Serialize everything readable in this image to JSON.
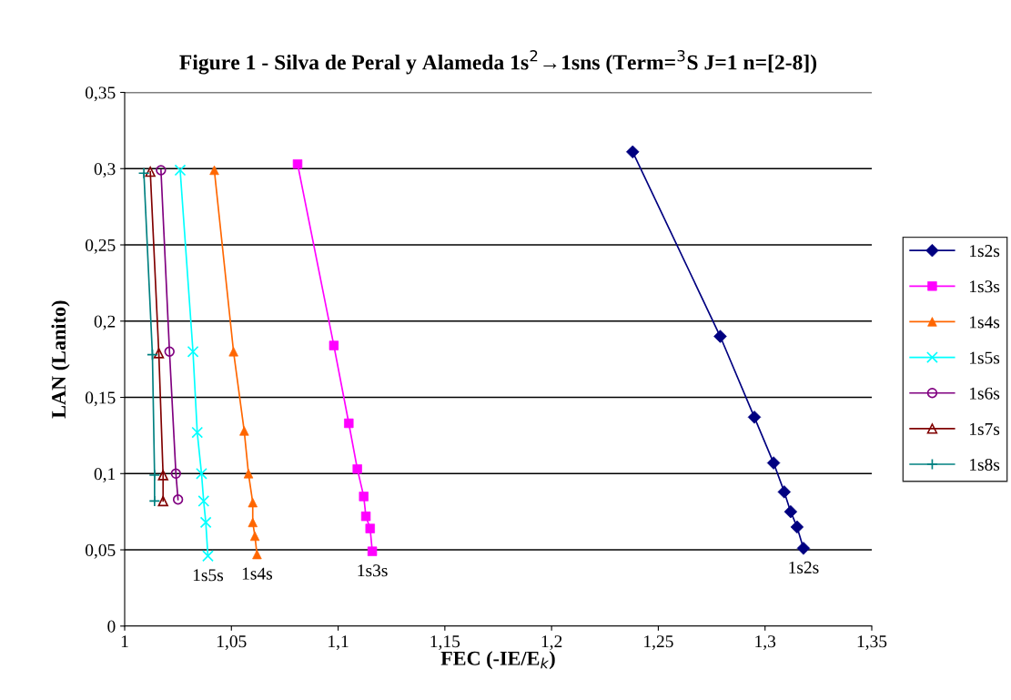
{
  "chart_data": {
    "type": "line",
    "title": "Figure 1 - Silva de Peral y Alameda 1s$^{2}$→1sns (Term=$^{3}$S J=1 n=[2-8])",
    "xlabel": "FEC (-IE/E$_{k}$)",
    "ylabel": "LAN (Lanito)",
    "xlim": [
      1,
      1.35
    ],
    "ylim": [
      0,
      0.35
    ],
    "xticks": [
      {
        "value": 1,
        "label": "1"
      },
      {
        "value": 1.05,
        "label": "1,05"
      },
      {
        "value": 1.1,
        "label": "1,1"
      },
      {
        "value": 1.15,
        "label": "1,15"
      },
      {
        "value": 1.2,
        "label": "1,2"
      },
      {
        "value": 1.25,
        "label": "1,25"
      },
      {
        "value": 1.3,
        "label": "1,3"
      },
      {
        "value": 1.35,
        "label": "1,35"
      }
    ],
    "yticks": [
      {
        "value": 0,
        "label": "0"
      },
      {
        "value": 0.05,
        "label": "0,05"
      },
      {
        "value": 0.1,
        "label": "0,1"
      },
      {
        "value": 0.15,
        "label": "0,15"
      },
      {
        "value": 0.2,
        "label": "0,2"
      },
      {
        "value": 0.25,
        "label": "0,25"
      },
      {
        "value": 0.3,
        "label": "0,3"
      },
      {
        "value": 0.35,
        "label": "0,35"
      }
    ],
    "grid": "y",
    "legend": "right",
    "series": [
      {
        "name": "1s2s",
        "color": "#000080",
        "marker": "diamond",
        "x": [
          1.238,
          1.279,
          1.295,
          1.304,
          1.309,
          1.312,
          1.315,
          1.318
        ],
        "values": [
          0.311,
          0.19,
          0.137,
          0.107,
          0.088,
          0.075,
          0.065,
          0.051
        ]
      },
      {
        "name": "1s3s",
        "color": "#ff00ff",
        "marker": "square",
        "x": [
          1.081,
          1.098,
          1.105,
          1.109,
          1.112,
          1.113,
          1.115,
          1.116
        ],
        "values": [
          0.303,
          0.184,
          0.133,
          0.103,
          0.085,
          0.072,
          0.064,
          0.049
        ]
      },
      {
        "name": "1s4s",
        "color": "#ff6600",
        "marker": "triangle",
        "x": [
          1.042,
          1.051,
          1.056,
          1.058,
          1.06,
          1.06,
          1.061,
          1.062
        ],
        "values": [
          0.299,
          0.18,
          0.128,
          0.1,
          0.081,
          0.068,
          0.059,
          0.047
        ]
      },
      {
        "name": "1s5s",
        "color": "#00ffff",
        "marker": "cross",
        "x": [
          1.026,
          1.032,
          1.034,
          1.036,
          1.037,
          1.038,
          1.039
        ],
        "values": [
          0.299,
          0.18,
          0.127,
          0.1,
          0.082,
          0.068,
          0.046
        ]
      },
      {
        "name": "1s6s",
        "color": "#800080",
        "marker": "circle",
        "x": [
          1.017,
          1.021,
          1.024,
          1.025
        ],
        "values": [
          0.299,
          0.18,
          0.1,
          0.083
        ]
      },
      {
        "name": "1s7s",
        "color": "#800000",
        "marker": "triangle",
        "x": [
          1.012,
          1.016,
          1.018,
          1.018
        ],
        "values": [
          0.298,
          0.179,
          0.099,
          0.082
        ]
      },
      {
        "name": "1s8s",
        "color": "#008080",
        "marker": "plus",
        "x": [
          1.009,
          1.013,
          1.014,
          1.014
        ],
        "values": [
          0.297,
          0.178,
          0.099,
          0.082
        ]
      }
    ],
    "annotations": [
      {
        "text": "1s5s",
        "x": 1.039,
        "y": 0.046
      },
      {
        "text": "1s4s",
        "x": 1.062,
        "y": 0.047
      },
      {
        "text": "1s3s",
        "x": 1.116,
        "y": 0.049
      },
      {
        "text": "1s2s",
        "x": 1.318,
        "y": 0.051
      }
    ]
  }
}
